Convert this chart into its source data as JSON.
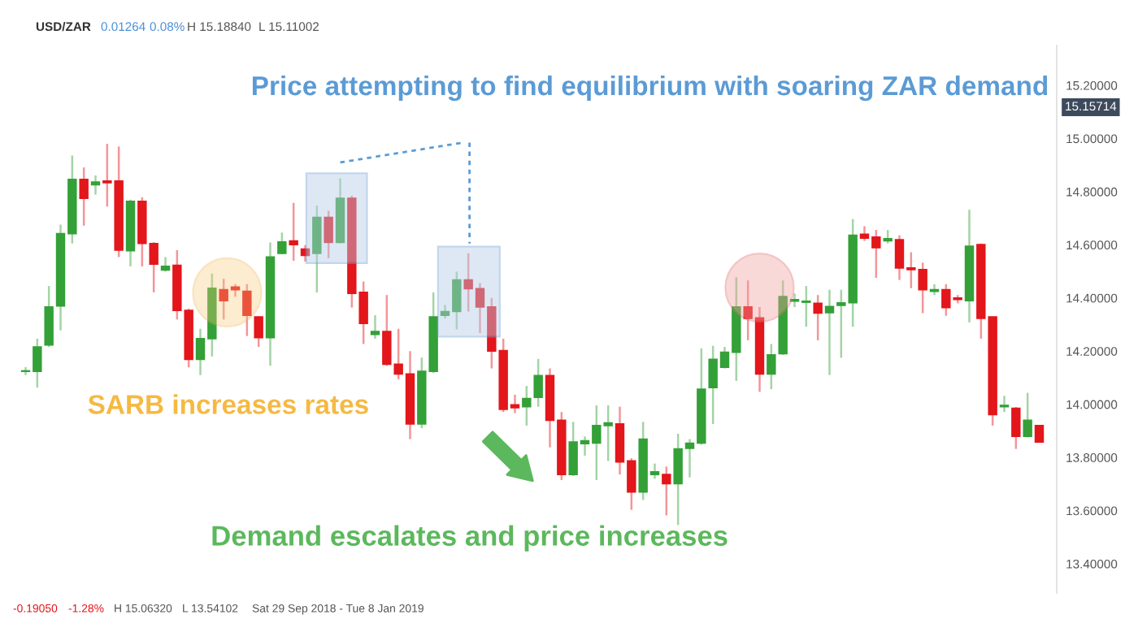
{
  "chart_data": {
    "type": "candlestick",
    "categories": [
      null,
      null,
      null,
      null,
      null,
      null,
      null,
      null,
      null,
      null,
      null,
      null,
      null,
      null,
      null,
      null,
      null,
      null,
      null,
      null,
      null,
      null,
      null,
      null,
      null,
      null,
      null,
      null,
      null,
      null,
      null,
      null,
      null,
      null,
      null,
      null,
      null,
      null,
      null,
      null,
      null,
      null,
      null,
      null,
      null,
      null,
      null,
      null,
      null,
      null,
      null,
      null,
      null,
      null,
      null,
      null,
      null,
      null,
      null,
      null,
      null,
      null,
      null,
      null,
      null,
      null,
      null,
      null,
      null,
      null,
      null,
      null,
      null,
      null,
      null,
      null,
      null,
      null,
      null,
      null,
      null,
      null,
      null,
      null,
      null,
      null,
      null,
      null
    ],
    "ohlc": [
      [
        14.124,
        14.14,
        14.11,
        14.126
      ],
      [
        14.124,
        14.247,
        14.063,
        14.216
      ],
      [
        14.223,
        14.445,
        14.216,
        14.366
      ],
      [
        14.37,
        14.676,
        14.278,
        14.642
      ],
      [
        14.642,
        14.936,
        14.605,
        14.846
      ],
      [
        14.846,
        14.891,
        14.672,
        14.775
      ],
      [
        14.826,
        14.861,
        14.789,
        14.836
      ],
      [
        14.84,
        14.98,
        14.744,
        14.834
      ],
      [
        14.84,
        14.97,
        14.554,
        14.58
      ],
      [
        14.578,
        14.77,
        14.519,
        14.764
      ],
      [
        14.764,
        14.779,
        14.519,
        14.605
      ],
      [
        14.605,
        14.61,
        14.421,
        14.527
      ],
      [
        14.505,
        14.554,
        14.499,
        14.519
      ],
      [
        14.523,
        14.58,
        14.319,
        14.353
      ],
      [
        14.353,
        14.36,
        14.139,
        14.169
      ],
      [
        14.169,
        14.284,
        14.11,
        14.247
      ],
      [
        14.247,
        14.492,
        14.18,
        14.437
      ],
      [
        14.431,
        14.472,
        14.319,
        14.39
      ],
      [
        14.441,
        14.452,
        14.405,
        14.431
      ],
      [
        14.425,
        14.452,
        14.257,
        14.335
      ],
      [
        14.329,
        14.33,
        14.216,
        14.251
      ],
      [
        14.251,
        14.609,
        14.145,
        14.554
      ],
      [
        14.568,
        14.646,
        14.564,
        14.611
      ],
      [
        14.615,
        14.758,
        14.54,
        14.601
      ],
      [
        14.584,
        14.599,
        14.537,
        14.56
      ],
      [
        14.568,
        14.748,
        14.421,
        14.703
      ],
      [
        14.703,
        14.728,
        14.55,
        14.609
      ],
      [
        14.609,
        14.85,
        14.605,
        14.775
      ],
      [
        14.775,
        14.785,
        14.364,
        14.417
      ],
      [
        14.421,
        14.462,
        14.227,
        14.304
      ],
      [
        14.263,
        14.335,
        14.247,
        14.274
      ],
      [
        14.274,
        14.411,
        14.145,
        14.151
      ],
      [
        14.151,
        14.284,
        14.094,
        14.114
      ],
      [
        14.114,
        14.2,
        13.869,
        13.926
      ],
      [
        13.926,
        14.176,
        13.91,
        14.124
      ],
      [
        14.124,
        14.421,
        14.118,
        14.329
      ],
      [
        14.335,
        14.374,
        14.323,
        14.349
      ],
      [
        14.349,
        14.499,
        14.282,
        14.468
      ],
      [
        14.468,
        14.568,
        14.349,
        14.435
      ],
      [
        14.435,
        14.456,
        14.268,
        14.366
      ],
      [
        14.366,
        14.4,
        14.135,
        14.2
      ],
      [
        14.202,
        14.247,
        13.971,
        13.981
      ],
      [
        13.998,
        14.036,
        13.967,
        13.987
      ],
      [
        13.991,
        14.069,
        13.92,
        14.022
      ],
      [
        14.026,
        14.171,
        13.991,
        14.108
      ],
      [
        14.108,
        14.135,
        13.838,
        13.94
      ],
      [
        13.94,
        13.971,
        13.715,
        13.736
      ],
      [
        13.736,
        13.934,
        13.73,
        13.858
      ],
      [
        13.852,
        13.879,
        13.807,
        13.863
      ],
      [
        13.854,
        13.996,
        13.715,
        13.92
      ],
      [
        13.92,
        13.996,
        13.787,
        13.93
      ],
      [
        13.926,
        13.991,
        13.736,
        13.783
      ],
      [
        13.787,
        13.797,
        13.603,
        13.67
      ],
      [
        13.67,
        13.934,
        13.64,
        13.869
      ],
      [
        13.736,
        13.777,
        13.72,
        13.746
      ],
      [
        13.736,
        13.766,
        13.582,
        13.701
      ],
      [
        13.701,
        13.889,
        13.546,
        13.832
      ],
      [
        13.834,
        13.869,
        13.725,
        13.854
      ],
      [
        13.854,
        14.21,
        13.848,
        14.057
      ],
      [
        14.063,
        14.22,
        13.926,
        14.169
      ],
      [
        14.139,
        14.216,
        14.135,
        14.196
      ],
      [
        14.196,
        14.478,
        14.088,
        14.366
      ],
      [
        14.366,
        14.466,
        14.241,
        14.323
      ],
      [
        14.325,
        14.366,
        14.047,
        14.114
      ],
      [
        14.114,
        14.227,
        14.057,
        14.186
      ],
      [
        14.19,
        14.466,
        14.186,
        14.405
      ],
      [
        14.388,
        14.417,
        14.366,
        14.394
      ],
      [
        14.384,
        14.445,
        14.292,
        14.388
      ],
      [
        14.38,
        14.411,
        14.241,
        14.343
      ],
      [
        14.345,
        14.431,
        14.11,
        14.368
      ],
      [
        14.372,
        14.431,
        14.175,
        14.382
      ],
      [
        14.382,
        14.697,
        14.292,
        14.636
      ],
      [
        14.64,
        14.67,
        14.615,
        14.625
      ],
      [
        14.629,
        14.656,
        14.476,
        14.589
      ],
      [
        14.615,
        14.656,
        14.605,
        14.623
      ],
      [
        14.619,
        14.636,
        14.468,
        14.513
      ],
      [
        14.513,
        14.572,
        14.437,
        14.507
      ],
      [
        14.507,
        14.533,
        14.343,
        14.431
      ],
      [
        14.425,
        14.452,
        14.411,
        14.431
      ],
      [
        14.431,
        14.452,
        14.333,
        14.364
      ],
      [
        14.4,
        14.411,
        14.38,
        14.394
      ],
      [
        14.39,
        14.732,
        14.308,
        14.595
      ],
      [
        14.601,
        14.605,
        14.247,
        14.323
      ],
      [
        14.329,
        14.33,
        13.92,
        13.961
      ],
      [
        13.991,
        14.032,
        13.971,
        13.996
      ],
      [
        13.985,
        13.99,
        13.832,
        13.879
      ],
      [
        13.879,
        14.043,
        13.875,
        13.94
      ],
      [
        13.92,
        13.92,
        13.858,
        13.858
      ]
    ],
    "colors": [
      "#34a038",
      "#34a038",
      "#34a038",
      "#34a038",
      "#34a038",
      "#e3161b",
      "#34a038",
      "#e3161b",
      "#e3161b",
      "#34a038",
      "#e3161b",
      "#e3161b",
      "#34a038",
      "#e3161b",
      "#e3161b",
      "#34a038",
      "#34a038",
      "#e3161b",
      "#e3161b",
      "#e3161b",
      "#e3161b",
      "#34a038",
      "#34a038",
      "#e3161b",
      "#e3161b",
      "#34a038",
      "#e3161b",
      "#34a038",
      "#e3161b",
      "#e3161b",
      "#34a038",
      "#e3161b",
      "#e3161b",
      "#e3161b",
      "#34a038",
      "#34a038",
      "#34a038",
      "#34a038",
      "#e3161b",
      "#e3161b",
      "#e3161b",
      "#e3161b",
      "#e3161b",
      "#34a038",
      "#34a038",
      "#e3161b",
      "#e3161b",
      "#34a038",
      "#34a038",
      "#34a038",
      "#34a038",
      "#e3161b",
      "#e3161b",
      "#34a038",
      "#34a038",
      "#e3161b",
      "#34a038",
      "#34a038",
      "#34a038",
      "#34a038",
      "#34a038",
      "#34a038",
      "#e3161b",
      "#e3161b",
      "#34a038",
      "#34a038",
      "#34a038",
      "#34a038",
      "#e3161b",
      "#34a038",
      "#34a038",
      "#34a038",
      "#e3161b",
      "#e3161b",
      "#34a038",
      "#e3161b",
      "#e3161b",
      "#e3161b",
      "#34a038",
      "#e3161b",
      "#e3161b",
      "#34a038",
      "#e3161b",
      "#e3161b",
      "#34a038",
      "#e3161b",
      "#34a038",
      "#e3161b"
    ],
    "ylim": [
      13.29,
      15.35
    ],
    "yticks": [
      {
        "value": 13.4,
        "label": "13.40000"
      },
      {
        "value": 13.6,
        "label": "13.60000"
      },
      {
        "value": 13.8,
        "label": "13.80000"
      },
      {
        "value": 14.0,
        "label": "14.00000"
      },
      {
        "value": 14.2,
        "label": "14.20000"
      },
      {
        "value": 14.4,
        "label": "14.40000"
      },
      {
        "value": 14.6,
        "label": "14.60000"
      },
      {
        "value": 14.8,
        "label": "14.80000"
      },
      {
        "value": 15.0,
        "label": "15.00000"
      },
      {
        "value": 15.2,
        "label": "15.20000"
      }
    ],
    "tick_labels": "y",
    "grid": false,
    "annotations": [
      "USD/ZAR",
      "0.01264",
      "0.08%",
      "H 15.18840",
      "L 15.11002",
      "Price attempting to find equilibrium with soaring ZAR demand",
      "SARB increases rates",
      "Demand escalates and price increases",
      "-0.19050",
      "-1.28%",
      "H 15.06320",
      "L 13.54102",
      "Sat 29 Sep 2018 - Tue 8 Jan 2019",
      "15.15714"
    ]
  }
}
